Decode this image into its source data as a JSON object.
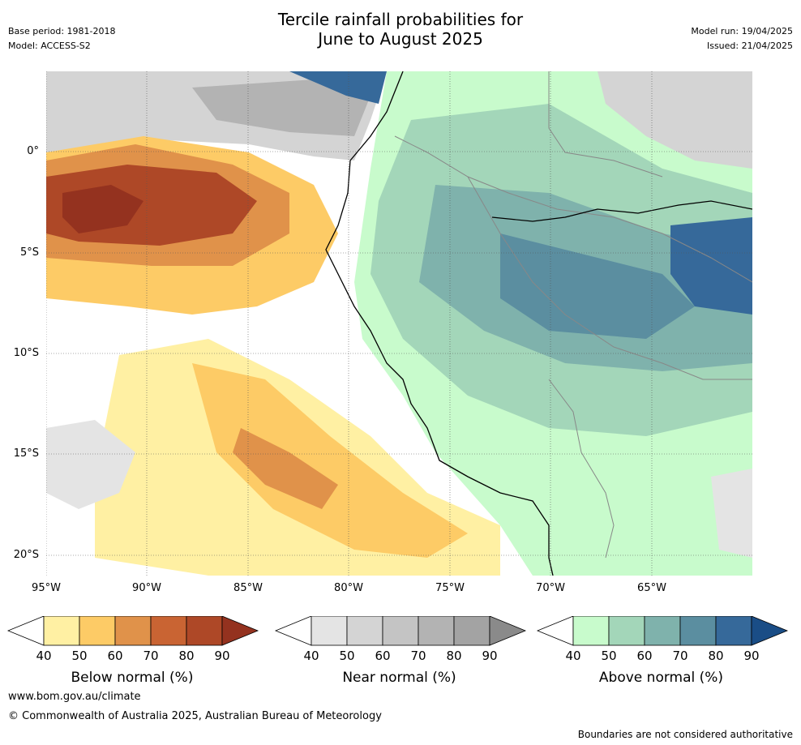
{
  "header": {
    "title_line1": "Tercile rainfall probabilities for",
    "title_line2": "June to August 2025",
    "base_period": "Base period: 1981-2018",
    "model": "Model: ACCESS-S2",
    "model_run": "Model run: 19/04/2025",
    "issued": "Issued: 21/04/2025"
  },
  "map": {
    "lat_ticks": [
      "0°",
      "5°S",
      "10°S",
      "15°S",
      "20°S"
    ],
    "lon_ticks": [
      "95°W",
      "90°W",
      "85°W",
      "80°W",
      "75°W",
      "70°W",
      "65°W"
    ],
    "regions": [
      {
        "category": "below",
        "level": "90"
      },
      {
        "category": "near",
        "level": "70"
      },
      {
        "category": "above",
        "level": "80"
      }
    ]
  },
  "colorbars": [
    {
      "label": "Below normal (%)",
      "ticks": [
        "40",
        "50",
        "60",
        "70",
        "80",
        "90"
      ],
      "colors": [
        "#fff0a3",
        "#fdcb66",
        "#e0924a",
        "#c96433",
        "#ae4827"
      ],
      "extend": "#94321f"
    },
    {
      "label": "Near normal (%)",
      "ticks": [
        "40",
        "50",
        "60",
        "70",
        "80",
        "90"
      ],
      "colors": [
        "#e4e4e4",
        "#d4d4d4",
        "#c4c4c4",
        "#b3b3b3",
        "#a3a3a3"
      ],
      "extend": "#8a8a8a"
    },
    {
      "label": "Above normal (%)",
      "ticks": [
        "40",
        "50",
        "60",
        "70",
        "80",
        "90"
      ],
      "colors": [
        "#c8fbcc",
        "#a3d6b9",
        "#7fb2ac",
        "#5b8ea0",
        "#36699a"
      ],
      "extend": "#1a4d86"
    }
  ],
  "footer": {
    "url": "www.bom.gov.au/climate",
    "copyright": "© Commonwealth of Australia 2025, Australian Bureau of Meteorology",
    "disclaimer": "Boundaries are not considered authoritative"
  }
}
